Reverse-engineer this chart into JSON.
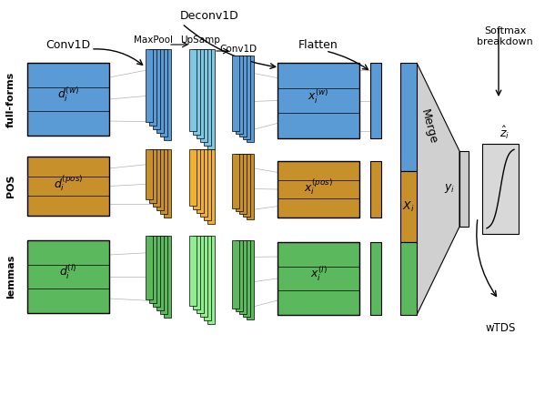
{
  "colors": {
    "blue": "#5B9BD5",
    "blue_light": "#7EC8E3",
    "orange": "#C8902A",
    "orange_light": "#F0B030",
    "green": "#5CB85C",
    "green_light": "#90EE90",
    "gray": "#BBBBBB",
    "gray_dark": "#888888",
    "bg": "#FFFFFF"
  },
  "labels": {
    "full_forms": "full-forms",
    "pos": "POS",
    "lemmas": "lemmas",
    "conv1d": "Conv1D",
    "deconv1d": "Deconv1D",
    "maxpool": "MaxPool",
    "upsamp": "UpSamp",
    "conv1d2": "Conv1D",
    "flatten": "Flatten",
    "merge": "Merge",
    "xi": "$X_i$",
    "yi": "$y_i$",
    "zi": "$\\hat{z}_i$",
    "softmax": "Softmax\nbreakdown",
    "wtds": "wTDS",
    "dw": "$d_i^{(w)}$",
    "dpos": "$d_i^{(pos)}$",
    "dl": "$d_i^{(l)}$",
    "xw": "$x_i^{(w)}$",
    "xpos": "$x_i^{(pos)}$",
    "xl": "$x_i^{(l)}$"
  }
}
